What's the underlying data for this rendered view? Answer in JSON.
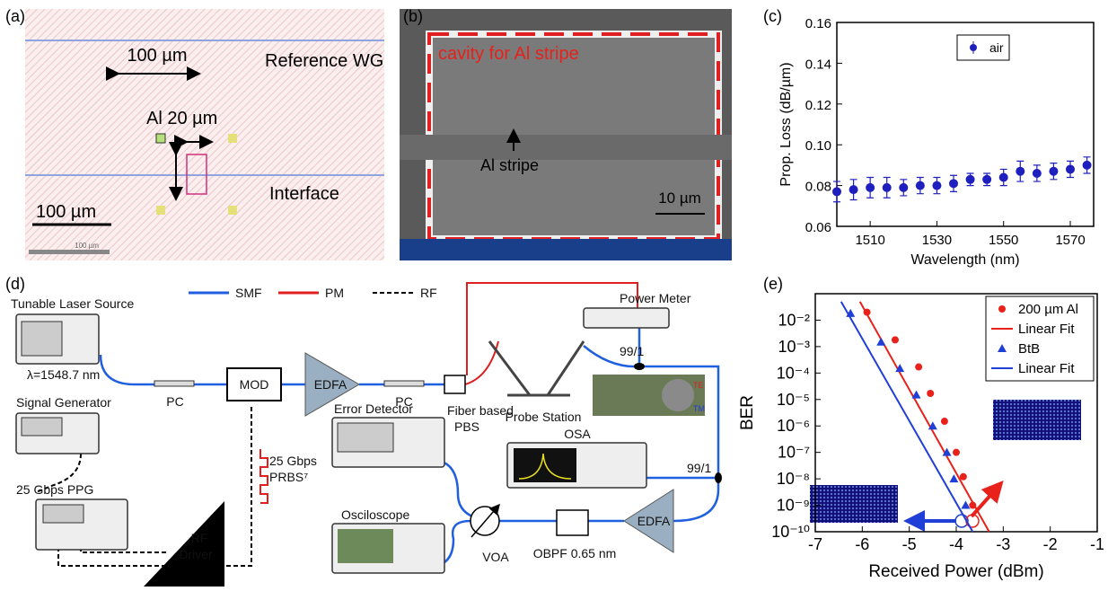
{
  "panels": {
    "a": {
      "label": "(a)",
      "scale_top": "100 µm",
      "reference": "Reference WG",
      "al_width": "Al 20 µm",
      "interface": "Interface",
      "scale_bottom": "100 µm",
      "scale_small": "100 µm"
    },
    "b": {
      "label": "(b)",
      "cavity": "cavity for Al stripe",
      "stripe": "Al stripe",
      "scale": "10 µm"
    },
    "d": {
      "label": "(d)",
      "legend": [
        "SMF",
        "PM",
        "RF"
      ],
      "laser": "Tunable Laser Source",
      "wavelength": "λ=1548.7 nm",
      "siggen": "Signal Generator",
      "ppg": "25 Gbps PPG",
      "driver": [
        "RF",
        "Driver"
      ],
      "pc1": "PC",
      "mod": "MOD",
      "edfa1": "EDFA",
      "pc2": "PC",
      "pbs": [
        "Fiber based",
        "PBS"
      ],
      "power_meter": "Power Meter",
      "split1": "99/1",
      "probe": "Probe Station",
      "te": "TE",
      "tm": "TM",
      "osa": "OSA",
      "split2": "99/1",
      "error_detector": "Error Detector",
      "scope": "Osciloscope",
      "voa": "VOA",
      "obpf": "OBPF 0.65 nm",
      "edfa2": "EDFA",
      "prbs": [
        "25 Gbps",
        "PRBS⁷"
      ]
    }
  },
  "chart_data": [
    {
      "type": "scatter",
      "panel_label": "(c)",
      "x_label": "Wavelength (nm)",
      "y_label": "Prop. Loss (dB/µm)",
      "x": [
        1500,
        1505,
        1510,
        1515,
        1520,
        1525,
        1530,
        1535,
        1540,
        1545,
        1550,
        1555,
        1560,
        1565,
        1570,
        1575
      ],
      "series": [
        {
          "name": "air",
          "color": "#1f1fbf",
          "values": [
            0.077,
            0.078,
            0.079,
            0.079,
            0.079,
            0.08,
            0.08,
            0.081,
            0.083,
            0.083,
            0.084,
            0.087,
            0.086,
            0.087,
            0.088,
            0.09
          ],
          "errors": [
            0.005,
            0.005,
            0.005,
            0.005,
            0.004,
            0.004,
            0.004,
            0.004,
            0.003,
            0.003,
            0.004,
            0.005,
            0.004,
            0.004,
            0.004,
            0.004
          ]
        }
      ],
      "xlim": [
        1500,
        1577
      ],
      "xticks": [
        1510,
        1530,
        1550,
        1570
      ],
      "ylim": [
        0.06,
        0.16
      ],
      "yticks": [
        0.06,
        0.08,
        {
          "value": 0.1,
          "label": "0.10"
        },
        0.12,
        0.14,
        0.16
      ],
      "legend": "top"
    },
    {
      "type": "scatter",
      "panel_label": "(e)",
      "x_label": "Received Power (dBm)",
      "y_label": "BER",
      "log_y": true,
      "series": [
        {
          "name": "200 µm Al",
          "color": "#e8211b",
          "marker": "circle",
          "x": [
            -5.9,
            -5.3,
            -4.8,
            -4.55,
            -4.25,
            -4.0,
            -3.85,
            -3.65
          ],
          "values": [
            0.02,
            0.0018,
            0.00017,
            1.7e-05,
            1.5e-06,
            1e-07,
            1.2e-08,
            1e-09
          ]
        },
        {
          "name": "Linear Fit",
          "color": "#e8211b",
          "marker": "line",
          "x": [
            -6.05,
            -3.3
          ],
          "values": [
            0.05,
            1e-10
          ]
        },
        {
          "name": "BtB",
          "color": "#1f3fd6",
          "marker": "triangle",
          "x": [
            -6.25,
            -5.6,
            -5.2,
            -4.85,
            -4.5,
            -4.2,
            -4.05,
            -3.8
          ],
          "values": [
            0.018,
            0.0015,
            0.00015,
            1.5e-05,
            1e-06,
            1e-07,
            1e-08,
            1e-09
          ]
        },
        {
          "name": "Linear Fit",
          "color": "#1f3fd6",
          "marker": "line",
          "x": [
            -6.45,
            -3.65
          ],
          "values": [
            0.05,
            1e-10
          ]
        }
      ],
      "xlim": [
        -7,
        -1
      ],
      "xticks": [
        -7,
        -6,
        -5,
        -4,
        -3,
        -2,
        -1
      ],
      "ylim": [
        1e-10,
        0.1
      ],
      "yticks": [
        {
          "value": 0.01,
          "label": "10⁻²"
        },
        {
          "value": 0.001,
          "label": "10⁻³"
        },
        {
          "value": 0.0001,
          "label": "10⁻⁴"
        },
        {
          "value": 1e-05,
          "label": "10⁻⁵"
        },
        {
          "value": 1e-06,
          "label": "10⁻⁶"
        },
        {
          "value": 1e-07,
          "label": "10⁻⁷"
        },
        {
          "value": 1e-08,
          "label": "10⁻⁸"
        },
        {
          "value": 1e-09,
          "label": "10⁻⁹"
        },
        {
          "value": 1e-10,
          "label": "10⁻¹⁰"
        }
      ],
      "legend": "top-right"
    }
  ]
}
